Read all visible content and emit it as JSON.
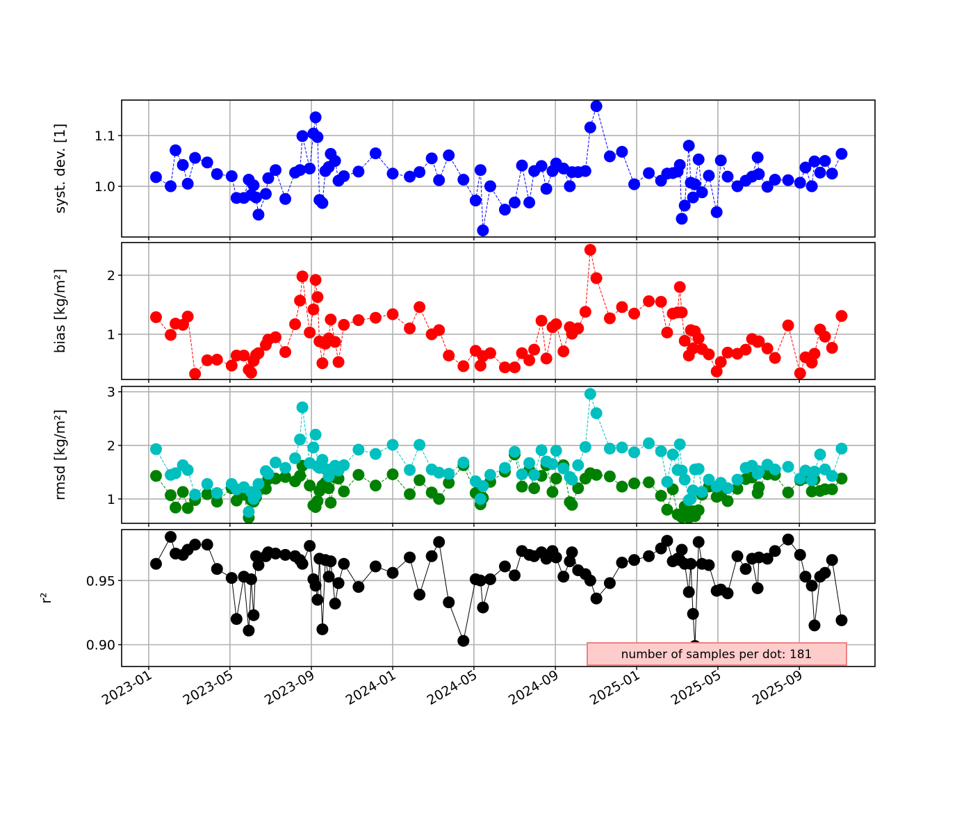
{
  "chart_data": {
    "type": "line",
    "x_unit": "decimal year",
    "xlim": [
      2022.889,
      2025.977
    ],
    "xticks": [
      {
        "value": 2023.0,
        "label": "2023-01"
      },
      {
        "value": 2023.333,
        "label": "2023-05"
      },
      {
        "value": 2023.667,
        "label": "2023-09"
      },
      {
        "value": 2024.0,
        "label": "2024-01"
      },
      {
        "value": 2024.333,
        "label": "2024-05"
      },
      {
        "value": 2024.667,
        "label": "2024-09"
      },
      {
        "value": 2025.0,
        "label": "2025-01"
      },
      {
        "value": 2025.333,
        "label": "2025-05"
      },
      {
        "value": 2025.667,
        "label": "2025-09"
      }
    ],
    "grid": true,
    "annotation": "number of samples per dot: 181",
    "x": [
      2023.03,
      2023.09,
      2023.11,
      2023.14,
      2023.16,
      2023.19,
      2023.24,
      2023.28,
      2023.34,
      2023.36,
      2023.39,
      2023.41,
      2023.42,
      2023.43,
      2023.44,
      2023.45,
      2023.48,
      2023.49,
      2023.52,
      2023.56,
      2023.6,
      2023.62,
      2023.63,
      2023.66,
      2023.675,
      2023.684,
      2023.692,
      2023.7,
      2023.712,
      2023.724,
      2023.738,
      2023.746,
      2023.764,
      2023.778,
      2023.8,
      2023.86,
      2023.93,
      2024.0,
      2024.07,
      2024.11,
      2024.16,
      2024.19,
      2024.23,
      2024.29,
      2024.34,
      2024.36,
      2024.37,
      2024.4,
      2024.46,
      2024.5,
      2024.53,
      2024.56,
      2024.58,
      2024.61,
      2024.63,
      2024.655,
      2024.67,
      2024.7,
      2024.726,
      2024.735,
      2024.76,
      2024.79,
      2024.81,
      2024.835,
      2024.89,
      2024.94,
      2024.99,
      2025.05,
      2025.1,
      2025.125,
      2025.148,
      2025.168,
      2025.177,
      2025.185,
      2025.197,
      2025.214,
      2025.222,
      2025.231,
      2025.239,
      2025.254,
      2025.268,
      2025.296,
      2025.328,
      2025.345,
      2025.373,
      2025.413,
      2025.447,
      2025.473,
      2025.496,
      2025.501,
      2025.536,
      2025.567,
      2025.621,
      2025.67,
      2025.692,
      2025.718,
      2025.729,
      2025.752,
      2025.772,
      2025.801,
      2025.84
    ],
    "panels": [
      {
        "ylabel": "syst. dev. [1]",
        "ylim": [
          0.9,
          1.17
        ],
        "yticks": [
          {
            "value": 1.0,
            "label": "1.0"
          },
          {
            "value": 1.1,
            "label": "1.1"
          }
        ],
        "series": [
          {
            "name": "syst. dev.",
            "color": "#0000ff",
            "style": "dashed",
            "values": [
              1.018,
              1.0,
              1.071,
              1.042,
              1.005,
              1.056,
              1.047,
              1.024,
              1.02,
              0.977,
              0.977,
              1.013,
              0.983,
              1.002,
              0.978,
              0.944,
              0.985,
              1.016,
              1.032,
              0.975,
              1.027,
              1.032,
              1.099,
              1.035,
              1.104,
              1.136,
              1.097,
              0.973,
              0.967,
              1.03,
              1.038,
              1.064,
              1.05,
              1.011,
              1.02,
              1.029,
              1.065,
              1.025,
              1.019,
              1.028,
              1.055,
              1.012,
              1.061,
              1.013,
              0.972,
              1.032,
              0.913,
              1.0,
              0.954,
              0.968,
              1.041,
              0.968,
              1.03,
              1.04,
              0.995,
              1.03,
              1.045,
              1.035,
              1.0,
              1.028,
              1.028,
              1.03,
              1.116,
              1.158,
              1.059,
              1.068,
              1.004,
              1.026,
              1.011,
              1.025,
              1.026,
              1.029,
              1.042,
              0.936,
              0.962,
              1.08,
              1.007,
              0.978,
              1.004,
              1.053,
              0.988,
              1.021,
              0.949,
              1.051,
              1.019,
              1.0,
              1.011,
              1.019,
              1.057,
              1.024,
              0.999,
              1.013,
              1.012,
              1.007,
              1.037,
              1.0,
              1.049,
              1.027,
              1.05,
              1.025,
              1.064
            ]
          }
        ]
      },
      {
        "ylabel": "bias [kg/m²]",
        "ylim": [
          0.235,
          2.553
        ],
        "yticks": [
          {
            "value": 1,
            "label": "1"
          },
          {
            "value": 2,
            "label": "2"
          }
        ],
        "series": [
          {
            "name": "bias",
            "color": "#ff0000",
            "style": "dashed",
            "values": [
              1.29,
              0.99,
              1.18,
              1.16,
              1.3,
              0.33,
              0.56,
              0.57,
              0.47,
              0.64,
              0.64,
              0.4,
              0.35,
              0.55,
              0.65,
              0.68,
              0.82,
              0.91,
              0.95,
              0.7,
              1.17,
              1.57,
              1.98,
              1.03,
              1.42,
              1.92,
              1.63,
              0.88,
              0.51,
              0.84,
              0.93,
              1.25,
              0.87,
              0.53,
              1.16,
              1.24,
              1.28,
              1.34,
              1.1,
              1.46,
              1.0,
              1.07,
              0.64,
              0.46,
              0.72,
              0.47,
              0.63,
              0.68,
              0.44,
              0.44,
              0.68,
              0.56,
              0.74,
              1.23,
              0.59,
              1.12,
              1.17,
              0.71,
              1.12,
              1.01,
              1.1,
              1.38,
              2.43,
              1.95,
              1.27,
              1.46,
              1.35,
              1.56,
              1.55,
              1.03,
              1.35,
              1.37,
              1.8,
              1.37,
              0.89,
              0.64,
              1.07,
              0.76,
              1.05,
              0.93,
              0.75,
              0.66,
              0.37,
              0.53,
              0.69,
              0.67,
              0.74,
              0.92,
              0.87,
              0.88,
              0.76,
              0.6,
              1.15,
              0.34,
              0.61,
              0.52,
              0.67,
              1.08,
              0.96,
              0.77,
              1.31
            ]
          }
        ]
      },
      {
        "ylabel": "rmsd [kg/m²]",
        "ylim": [
          0.545,
          3.1
        ],
        "yticks": [
          {
            "value": 1,
            "label": "1"
          },
          {
            "value": 2,
            "label": "2"
          },
          {
            "value": 3,
            "label": "3"
          }
        ],
        "series": [
          {
            "name": "rmsd (green)",
            "color": "#008000",
            "style": "dashed",
            "values": [
              1.43,
              1.07,
              0.84,
              1.13,
              0.83,
              0.98,
              1.09,
              0.95,
              1.2,
              0.97,
              1.08,
              0.65,
              0.98,
              0.95,
              1.03,
              1.16,
              1.19,
              1.37,
              1.38,
              1.41,
              1.33,
              1.43,
              1.62,
              1.25,
              0.88,
              0.85,
              0.96,
              1.15,
              1.25,
              1.3,
              1.2,
              0.93,
              1.4,
              1.38,
              1.14,
              1.45,
              1.25,
              1.46,
              1.09,
              1.35,
              1.12,
              1.0,
              1.3,
              1.63,
              1.11,
              0.9,
              1.02,
              1.32,
              1.51,
              1.83,
              1.23,
              1.54,
              1.2,
              1.43,
              1.63,
              1.13,
              1.38,
              1.63,
              0.94,
              0.89,
              1.2,
              1.38,
              1.48,
              1.45,
              1.42,
              1.23,
              1.29,
              1.31,
              1.06,
              0.8,
              1.18,
              0.71,
              0.7,
              0.66,
              0.86,
              0.65,
              0.72,
              0.77,
              0.68,
              0.79,
              1.08,
              1.23,
              1.04,
              1.07,
              0.96,
              1.19,
              1.37,
              1.4,
              1.11,
              1.22,
              1.46,
              1.45,
              1.12,
              1.35,
              1.39,
              1.14,
              1.36,
              1.15,
              1.18,
              1.18,
              1.38
            ]
          },
          {
            "name": "rmsd (cyan)",
            "color": "#00bfbf",
            "style": "dashed",
            "values": [
              1.93,
              1.45,
              1.48,
              1.63,
              1.54,
              1.08,
              1.28,
              1.11,
              1.28,
              1.18,
              1.22,
              0.76,
              1.13,
              1.0,
              1.08,
              1.28,
              1.52,
              1.47,
              1.68,
              1.58,
              1.76,
              2.11,
              2.71,
              1.67,
              1.96,
              2.2,
              1.61,
              1.58,
              1.73,
              1.56,
              1.42,
              1.55,
              1.62,
              1.53,
              1.63,
              1.92,
              1.84,
              2.01,
              1.54,
              2.01,
              1.55,
              1.49,
              1.47,
              1.68,
              1.33,
              1.0,
              1.24,
              1.45,
              1.58,
              1.88,
              1.46,
              1.67,
              1.45,
              1.91,
              1.7,
              1.65,
              1.9,
              1.57,
              1.41,
              1.36,
              1.63,
              1.97,
              2.96,
              2.6,
              1.94,
              1.96,
              1.87,
              2.04,
              1.89,
              1.32,
              1.83,
              1.54,
              2.02,
              1.53,
              1.36,
              0.98,
              1.0,
              1.16,
              1.55,
              1.56,
              1.13,
              1.36,
              1.23,
              1.3,
              1.2,
              1.36,
              1.58,
              1.62,
              1.47,
              1.52,
              1.64,
              1.55,
              1.6,
              1.38,
              1.53,
              1.35,
              1.51,
              1.83,
              1.55,
              1.43,
              1.94
            ]
          }
        ]
      },
      {
        "ylabel": "r²",
        "ylim": [
          0.883,
          0.9897
        ],
        "yticks": [
          {
            "value": 0.9,
            "label": "0.90"
          },
          {
            "value": 0.95,
            "label": "0.95"
          }
        ],
        "series": [
          {
            "name": "r²",
            "color": "#000000",
            "style": "solid",
            "values": [
              0.963,
              0.984,
              0.971,
              0.97,
              0.974,
              0.978,
              0.978,
              0.959,
              0.952,
              0.92,
              0.953,
              0.911,
              0.951,
              0.923,
              0.969,
              0.962,
              0.969,
              0.972,
              0.971,
              0.97,
              0.969,
              0.966,
              0.963,
              0.977,
              0.951,
              0.946,
              0.935,
              0.967,
              0.912,
              0.966,
              0.953,
              0.965,
              0.932,
              0.948,
              0.963,
              0.945,
              0.961,
              0.956,
              0.968,
              0.939,
              0.969,
              0.98,
              0.933,
              0.903,
              0.951,
              0.95,
              0.929,
              0.951,
              0.961,
              0.954,
              0.973,
              0.97,
              0.969,
              0.972,
              0.967,
              0.973,
              0.968,
              0.953,
              0.965,
              0.972,
              0.958,
              0.955,
              0.95,
              0.936,
              0.948,
              0.964,
              0.966,
              0.969,
              0.975,
              0.981,
              0.965,
              0.967,
              0.966,
              0.974,
              0.963,
              0.941,
              0.963,
              0.924,
              0.899,
              0.98,
              0.963,
              0.962,
              0.942,
              0.943,
              0.94,
              0.969,
              0.959,
              0.967,
              0.944,
              0.968,
              0.967,
              0.973,
              0.982,
              0.97,
              0.953,
              0.946,
              0.915,
              0.953,
              0.956,
              0.966,
              0.919
            ]
          }
        ]
      }
    ]
  }
}
